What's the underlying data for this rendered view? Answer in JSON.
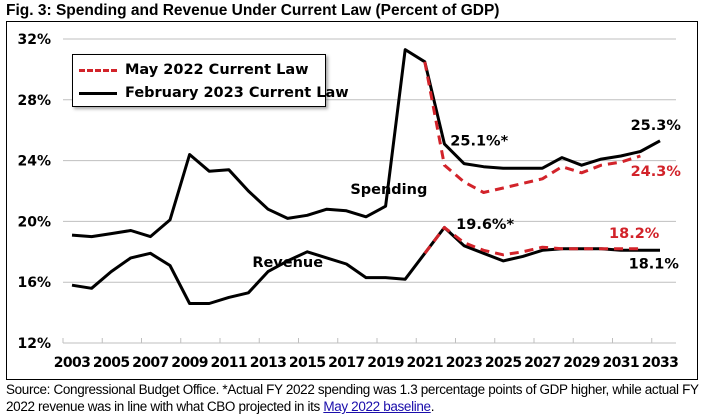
{
  "title": "Fig. 3: Spending and Revenue Under Current Law (Percent of GDP)",
  "source": {
    "text": "Source: Congressional Budget Office. *Actual FY 2022 spending was 1.3 percentage points of GDP higher, while actual FY 2022 revenue was in line with what CBO projected in its ",
    "link_text": "May 2022 baseline",
    "end": "."
  },
  "colors": {
    "feb2023": "#000000",
    "may2022": "#d2232a",
    "grid": "#bfbfbf"
  },
  "chart_data": {
    "type": "line",
    "title": "Fig. 3: Spending and Revenue Under Current Law (Percent of GDP)",
    "xlabel": "",
    "ylabel": "",
    "ylim": [
      12,
      32
    ],
    "yticks": [
      12,
      16,
      20,
      24,
      28,
      32
    ],
    "ytick_labels": [
      "12%",
      "16%",
      "20%",
      "24%",
      "28%",
      "32%"
    ],
    "xlim": [
      2003,
      2033
    ],
    "xtick_labels": [
      "2003",
      "2005",
      "2007",
      "2009",
      "2011",
      "2013",
      "2015",
      "2017",
      "2019",
      "2021",
      "2023",
      "2025",
      "2027",
      "2029",
      "2031",
      "2033"
    ],
    "grid": "horizontal",
    "legend": {
      "placement": "top-left",
      "entries": [
        {
          "label": "May 2022 Current Law",
          "style": "dashed",
          "color": "#d2232a"
        },
        {
          "label": "February 2023 Current Law",
          "style": "solid",
          "color": "#000000"
        }
      ]
    },
    "series": [
      {
        "name": "February 2023 Current Law - Spending",
        "style": "solid",
        "color": "#000000",
        "x": [
          2003,
          2004,
          2005,
          2006,
          2007,
          2008,
          2009,
          2010,
          2011,
          2012,
          2013,
          2014,
          2015,
          2016,
          2017,
          2018,
          2019,
          2020,
          2021,
          2022,
          2023,
          2024,
          2025,
          2026,
          2027,
          2028,
          2029,
          2030,
          2031,
          2032,
          2033
        ],
        "values": [
          19.1,
          19.0,
          19.2,
          19.4,
          19.0,
          20.1,
          24.4,
          23.3,
          23.4,
          22.0,
          20.8,
          20.2,
          20.4,
          20.8,
          20.7,
          20.3,
          21.0,
          31.3,
          30.5,
          25.1,
          23.8,
          23.6,
          23.5,
          23.5,
          23.5,
          24.2,
          23.7,
          24.1,
          24.3,
          24.6,
          25.3
        ]
      },
      {
        "name": "February 2023 Current Law - Revenue",
        "style": "solid",
        "color": "#000000",
        "x": [
          2003,
          2004,
          2005,
          2006,
          2007,
          2008,
          2009,
          2010,
          2011,
          2012,
          2013,
          2014,
          2015,
          2016,
          2017,
          2018,
          2019,
          2020,
          2021,
          2022,
          2023,
          2024,
          2025,
          2026,
          2027,
          2028,
          2029,
          2030,
          2031,
          2032,
          2033
        ],
        "values": [
          15.8,
          15.6,
          16.7,
          17.6,
          17.9,
          17.1,
          14.6,
          14.6,
          15.0,
          15.3,
          16.7,
          17.4,
          18.0,
          17.6,
          17.2,
          16.3,
          16.3,
          16.2,
          17.9,
          19.6,
          18.4,
          17.9,
          17.4,
          17.7,
          18.1,
          18.2,
          18.2,
          18.2,
          18.1,
          18.1,
          18.1
        ]
      },
      {
        "name": "May 2022 Current Law - Spending",
        "style": "dashed",
        "color": "#d2232a",
        "x": [
          2021,
          2022,
          2023,
          2024,
          2025,
          2026,
          2027,
          2028,
          2029,
          2030,
          2031,
          2032
        ],
        "values": [
          30.5,
          23.7,
          22.6,
          21.9,
          22.2,
          22.5,
          22.8,
          23.6,
          23.2,
          23.7,
          23.9,
          24.3
        ]
      },
      {
        "name": "May 2022 Current Law - Revenue",
        "style": "dashed",
        "color": "#d2232a",
        "x": [
          2021,
          2022,
          2023,
          2024,
          2025,
          2026,
          2027,
          2028,
          2029,
          2030,
          2031,
          2032
        ],
        "values": [
          17.9,
          19.6,
          18.6,
          18.1,
          17.8,
          18.0,
          18.3,
          18.2,
          18.2,
          18.2,
          18.2,
          18.2
        ]
      }
    ],
    "annotations": [
      {
        "text": "Spending",
        "x": 2017.2,
        "y": 21.8,
        "color": "#000000"
      },
      {
        "text": "Revenue",
        "x": 2012.2,
        "y": 17.0,
        "color": "#000000"
      },
      {
        "text": "25.1%*",
        "x": 2022.3,
        "y": 25.0,
        "color": "#000000"
      },
      {
        "text": "19.6%*",
        "x": 2022.6,
        "y": 19.5,
        "color": "#000000"
      },
      {
        "text": "25.3%",
        "x": 2031.5,
        "y": 26.0,
        "color": "#000000"
      },
      {
        "text": "24.3%",
        "x": 2031.5,
        "y": 23.0,
        "color": "#d2232a"
      },
      {
        "text": "18.2%",
        "x": 2030.4,
        "y": 18.9,
        "color": "#d2232a"
      },
      {
        "text": "18.1%",
        "x": 2031.4,
        "y": 16.9,
        "color": "#000000"
      }
    ]
  }
}
